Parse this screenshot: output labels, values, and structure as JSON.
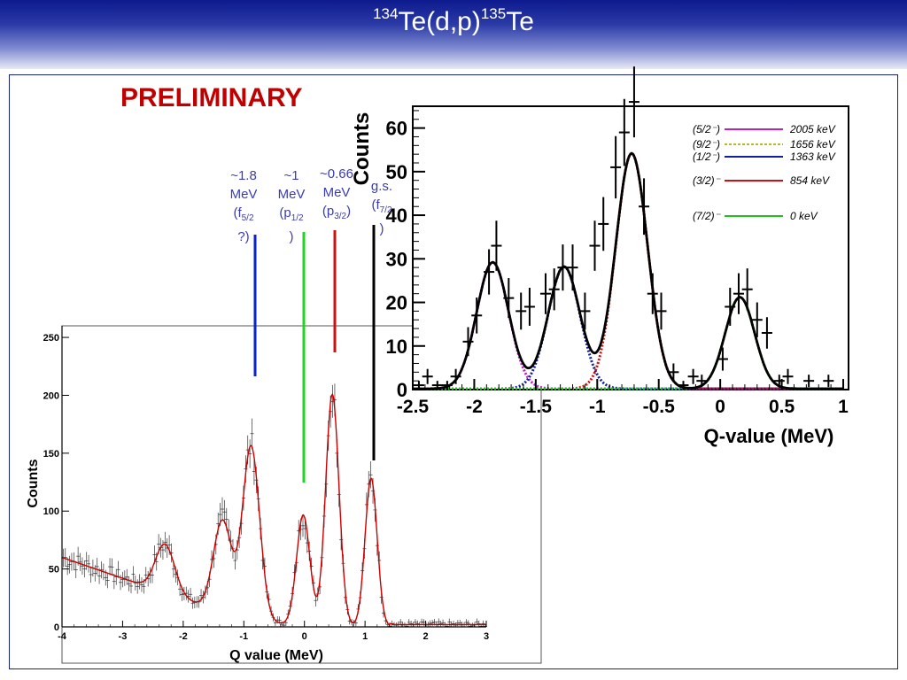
{
  "header": {
    "title_mass_left": "134",
    "title_reaction": "Te(d,p)",
    "title_mass_right": "135",
    "title_element": "Te"
  },
  "stamp": "PRELIMINARY",
  "annotations": [
    {
      "line1": "~1.8",
      "line2": "MeV",
      "line3_pre": "(f",
      "line3_sub": "5/2",
      "line4": "?)",
      "line_color": "#0a24c8"
    },
    {
      "line1": "~1",
      "line2": "MeV",
      "line3_pre": "(p",
      "line3_sub": "1/2",
      "line4": ")",
      "line_color": "#22d422"
    },
    {
      "line1": "~0.66",
      "line2": "MeV",
      "line3_pre": "(p",
      "line3_sub": "3/2",
      "line3_post": ")",
      "line_color": "#cc1010"
    },
    {
      "line1": "g.s.",
      "line2": "(f",
      "line2_sub": "7/2",
      "line3_pre": ")",
      "line_color": "#000000"
    }
  ],
  "colors": {
    "fit_total": "#cc0000",
    "magenta": "#c020c0",
    "olive": "#b8b830",
    "blue": "#1020a0",
    "red": "#cc1010",
    "green": "#20c020",
    "header_dark": "#0d1a8e"
  },
  "chart_data": [
    {
      "type": "scatter",
      "xlabel": "Q value (MeV)",
      "ylabel": "Counts",
      "xlim": [
        -4,
        3
      ],
      "ylim": [
        0,
        260
      ],
      "x_ticks": [
        -4,
        -3,
        -2,
        -1,
        0,
        1,
        2,
        3
      ],
      "y_ticks": [
        0,
        50,
        100,
        150,
        200,
        250
      ],
      "grid": false,
      "fit": {
        "baseline_start": 60,
        "baseline_slope_per_mev": -18,
        "baseline_end_x": -1.5,
        "peaks": [
          {
            "center": -2.3,
            "height": 42,
            "sigma": 0.16
          },
          {
            "center": -1.35,
            "height": 80,
            "sigma": 0.15
          },
          {
            "center": -0.88,
            "height": 150,
            "sigma": 0.14
          },
          {
            "center": -0.02,
            "height": 95,
            "sigma": 0.11
          },
          {
            "center": 0.46,
            "height": 200,
            "sigma": 0.11
          },
          {
            "center": 1.1,
            "height": 128,
            "sigma": 0.1
          }
        ]
      }
    },
    {
      "type": "scatter",
      "xlabel": "Q-value (MeV)",
      "ylabel": "Counts",
      "xlim": [
        -2.5,
        1
      ],
      "ylim": [
        0,
        65
      ],
      "x_ticks": [
        -2.5,
        -2,
        -1.5,
        -1,
        -0.5,
        0,
        0.5,
        1
      ],
      "y_ticks": [
        0,
        10,
        20,
        30,
        40,
        50,
        60
      ],
      "grid": false,
      "legend_position": "top-right",
      "series": [
        {
          "name": "(5/2⁻)",
          "energy": "2005 keV",
          "center": -1.85,
          "height": 29,
          "sigma": 0.13,
          "style": "dotted"
        },
        {
          "name": "(9/2⁻)",
          "energy": "1656 keV",
          "style": "dashed"
        },
        {
          "name": "(1/2⁻)",
          "energy": "1363 keV",
          "center": -1.27,
          "height": 28,
          "sigma": 0.13,
          "style": "dotted"
        },
        {
          "name": "(3/2)⁻",
          "energy": "854 keV",
          "center": -0.72,
          "height": 54,
          "sigma": 0.13,
          "style": "dotted"
        },
        {
          "name": "(7/2)⁻",
          "energy": "0 keV",
          "center": 0.16,
          "height": 21,
          "sigma": 0.12,
          "style": "dotted"
        }
      ],
      "points": [
        {
          "x": -2.45,
          "y": 1
        },
        {
          "x": -2.38,
          "y": 3
        },
        {
          "x": -2.3,
          "y": 1
        },
        {
          "x": -2.22,
          "y": 1
        },
        {
          "x": -2.15,
          "y": 3
        },
        {
          "x": -2.05,
          "y": 11
        },
        {
          "x": -1.98,
          "y": 17
        },
        {
          "x": -1.88,
          "y": 27
        },
        {
          "x": -1.82,
          "y": 33
        },
        {
          "x": -1.72,
          "y": 21
        },
        {
          "x": -1.62,
          "y": 18
        },
        {
          "x": -1.55,
          "y": 19
        },
        {
          "x": -1.42,
          "y": 22
        },
        {
          "x": -1.35,
          "y": 23
        },
        {
          "x": -1.28,
          "y": 28
        },
        {
          "x": -1.2,
          "y": 28
        },
        {
          "x": -1.1,
          "y": 18
        },
        {
          "x": -1.02,
          "y": 33
        },
        {
          "x": -0.95,
          "y": 38
        },
        {
          "x": -0.85,
          "y": 51
        },
        {
          "x": -0.78,
          "y": 59
        },
        {
          "x": -0.7,
          "y": 66
        },
        {
          "x": -0.62,
          "y": 42
        },
        {
          "x": -0.55,
          "y": 22
        },
        {
          "x": -0.48,
          "y": 18
        },
        {
          "x": -0.38,
          "y": 4
        },
        {
          "x": -0.3,
          "y": 1
        },
        {
          "x": -0.22,
          "y": 3
        },
        {
          "x": -0.15,
          "y": 2
        },
        {
          "x": 0.02,
          "y": 7
        },
        {
          "x": 0.08,
          "y": 19
        },
        {
          "x": 0.15,
          "y": 22
        },
        {
          "x": 0.22,
          "y": 23
        },
        {
          "x": 0.3,
          "y": 16
        },
        {
          "x": 0.38,
          "y": 13
        },
        {
          "x": 0.48,
          "y": 2
        },
        {
          "x": 0.55,
          "y": 3
        },
        {
          "x": 0.72,
          "y": 2
        },
        {
          "x": 0.88,
          "y": 2
        }
      ]
    }
  ]
}
